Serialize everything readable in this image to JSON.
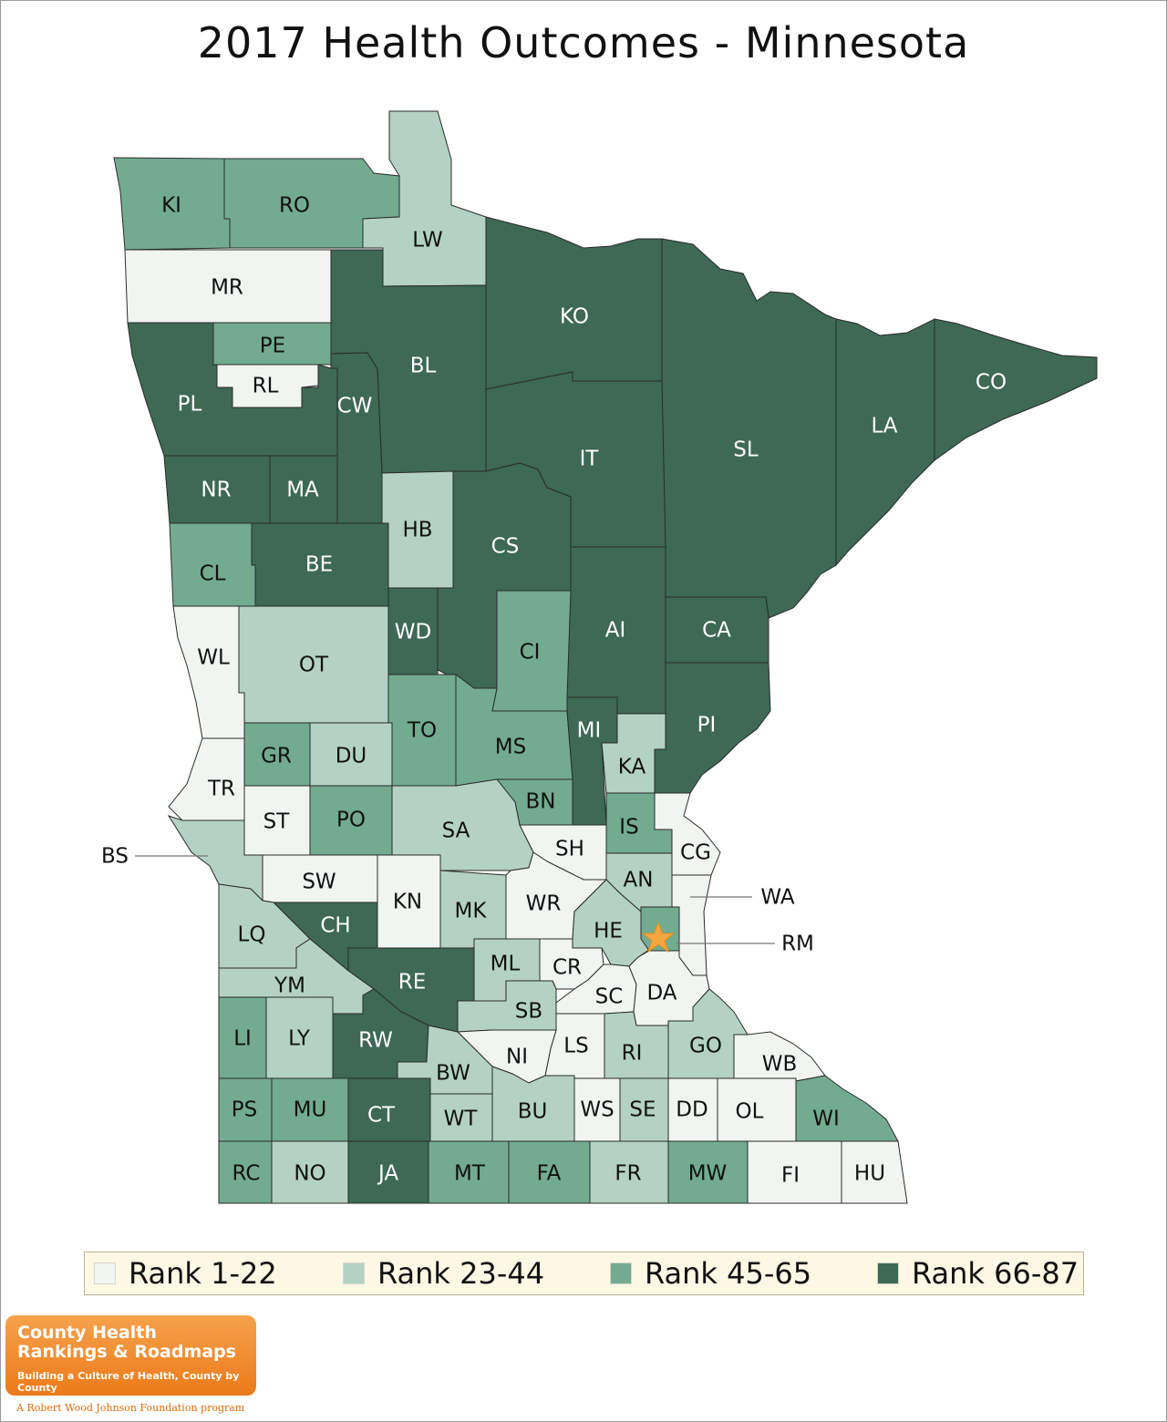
{
  "title": "2017 Health Outcomes - Minnesota",
  "colors": {
    "rank_1_22": "#f1f5f2",
    "rank_23_44": "#b3d2c3",
    "rank_45_65": "#72ab90",
    "rank_66_87": "#3d6955"
  },
  "legend": [
    {
      "label": "Rank 1-22",
      "color": "#f1f5f2"
    },
    {
      "label": "Rank 23-44",
      "color": "#b3d2c3"
    },
    {
      "label": "Rank 45-65",
      "color": "#72ab90"
    },
    {
      "label": "Rank 66-87",
      "color": "#3d6955"
    }
  ],
  "callouts": {
    "bs": "BS",
    "wa": "WA",
    "rm": "RM"
  },
  "logo": {
    "line1": "County Health",
    "line2": "Rankings & Roadmaps",
    "line3": "Building a Culture of Health, County by County",
    "tagline": "A Robert Wood Johnson Foundation program"
  },
  "counties": {
    "KI": {
      "label": "KI",
      "tier": 3
    },
    "RO": {
      "label": "RO",
      "tier": 3
    },
    "LW": {
      "label": "LW",
      "tier": 2
    },
    "MR": {
      "label": "MR",
      "tier": 1
    },
    "PE": {
      "label": "PE",
      "tier": 3
    },
    "RL": {
      "label": "RL",
      "tier": 1
    },
    "PL": {
      "label": "PL",
      "tier": 4
    },
    "BL": {
      "label": "BL",
      "tier": 4
    },
    "CW": {
      "label": "CW",
      "tier": 4
    },
    "KO": {
      "label": "KO",
      "tier": 4
    },
    "CO": {
      "label": "CO",
      "tier": 4
    },
    "LA": {
      "label": "LA",
      "tier": 4
    },
    "SL": {
      "label": "SL",
      "tier": 4
    },
    "IT": {
      "label": "IT",
      "tier": 4
    },
    "NR": {
      "label": "NR",
      "tier": 4
    },
    "MA": {
      "label": "MA",
      "tier": 4
    },
    "HB": {
      "label": "HB",
      "tier": 2
    },
    "CS": {
      "label": "CS",
      "tier": 4
    },
    "CL": {
      "label": "CL",
      "tier": 3
    },
    "BE": {
      "label": "BE",
      "tier": 4
    },
    "WD": {
      "label": "WD",
      "tier": 4
    },
    "AI": {
      "label": "AI",
      "tier": 4
    },
    "CA": {
      "label": "CA",
      "tier": 4
    },
    "CI": {
      "label": "CI",
      "tier": 3
    },
    "WL": {
      "label": "WL",
      "tier": 1
    },
    "OT": {
      "label": "OT",
      "tier": 2
    },
    "TO": {
      "label": "TO",
      "tier": 3
    },
    "MS": {
      "label": "MS",
      "tier": 3
    },
    "MI": {
      "label": "MI",
      "tier": 4
    },
    "PI": {
      "label": "PI",
      "tier": 4
    },
    "KA": {
      "label": "KA",
      "tier": 2
    },
    "GR": {
      "label": "GR",
      "tier": 3
    },
    "DU": {
      "label": "DU",
      "tier": 2
    },
    "TR": {
      "label": "TR",
      "tier": 1
    },
    "BN": {
      "label": "BN",
      "tier": 3
    },
    "ST": {
      "label": "ST",
      "tier": 1
    },
    "PO": {
      "label": "PO",
      "tier": 3
    },
    "SA": {
      "label": "SA",
      "tier": 2
    },
    "IS": {
      "label": "IS",
      "tier": 3
    },
    "SH": {
      "label": "SH",
      "tier": 1
    },
    "CG": {
      "label": "CG",
      "tier": 1
    },
    "BS": {
      "label": "BS",
      "tier": 2
    },
    "SW": {
      "label": "SW",
      "tier": 1
    },
    "KN": {
      "label": "KN",
      "tier": 1
    },
    "AN": {
      "label": "AN",
      "tier": 2
    },
    "WR": {
      "label": "WR",
      "tier": 1
    },
    "MK": {
      "label": "MK",
      "tier": 2
    },
    "WA": {
      "label": "WA",
      "tier": 1
    },
    "CH": {
      "label": "CH",
      "tier": 4
    },
    "LQ": {
      "label": "LQ",
      "tier": 2
    },
    "HE": {
      "label": "HE",
      "tier": 2
    },
    "RM": {
      "label": "RM",
      "tier": 3
    },
    "ML": {
      "label": "ML",
      "tier": 2
    },
    "CR": {
      "label": "CR",
      "tier": 1
    },
    "RE": {
      "label": "RE",
      "tier": 4
    },
    "YM": {
      "label": "YM",
      "tier": 2
    },
    "SC": {
      "label": "SC",
      "tier": 1
    },
    "DA": {
      "label": "DA",
      "tier": 1
    },
    "SB": {
      "label": "SB",
      "tier": 2
    },
    "LI": {
      "label": "LI",
      "tier": 3
    },
    "LY": {
      "label": "LY",
      "tier": 2
    },
    "RW": {
      "label": "RW",
      "tier": 4
    },
    "LS": {
      "label": "LS",
      "tier": 1
    },
    "NI": {
      "label": "NI",
      "tier": 1
    },
    "RI": {
      "label": "RI",
      "tier": 2
    },
    "GO": {
      "label": "GO",
      "tier": 2
    },
    "WB": {
      "label": "WB",
      "tier": 1
    },
    "BW": {
      "label": "BW",
      "tier": 2
    },
    "PS": {
      "label": "PS",
      "tier": 3
    },
    "MU": {
      "label": "MU",
      "tier": 3
    },
    "CT": {
      "label": "CT",
      "tier": 4
    },
    "WT": {
      "label": "WT",
      "tier": 2
    },
    "BU": {
      "label": "BU",
      "tier": 2
    },
    "WS": {
      "label": "WS",
      "tier": 1
    },
    "SE": {
      "label": "SE",
      "tier": 2
    },
    "DD": {
      "label": "DD",
      "tier": 1
    },
    "OL": {
      "label": "OL",
      "tier": 1
    },
    "WI": {
      "label": "WI",
      "tier": 3
    },
    "RC": {
      "label": "RC",
      "tier": 3
    },
    "NO": {
      "label": "NO",
      "tier": 2
    },
    "JA": {
      "label": "JA",
      "tier": 4
    },
    "MT": {
      "label": "MT",
      "tier": 3
    },
    "FA": {
      "label": "FA",
      "tier": 3
    },
    "FR": {
      "label": "FR",
      "tier": 2
    },
    "MW": {
      "label": "MW",
      "tier": 3
    },
    "FI": {
      "label": "FI",
      "tier": 1
    },
    "HU": {
      "label": "HU",
      "tier": 1
    }
  }
}
